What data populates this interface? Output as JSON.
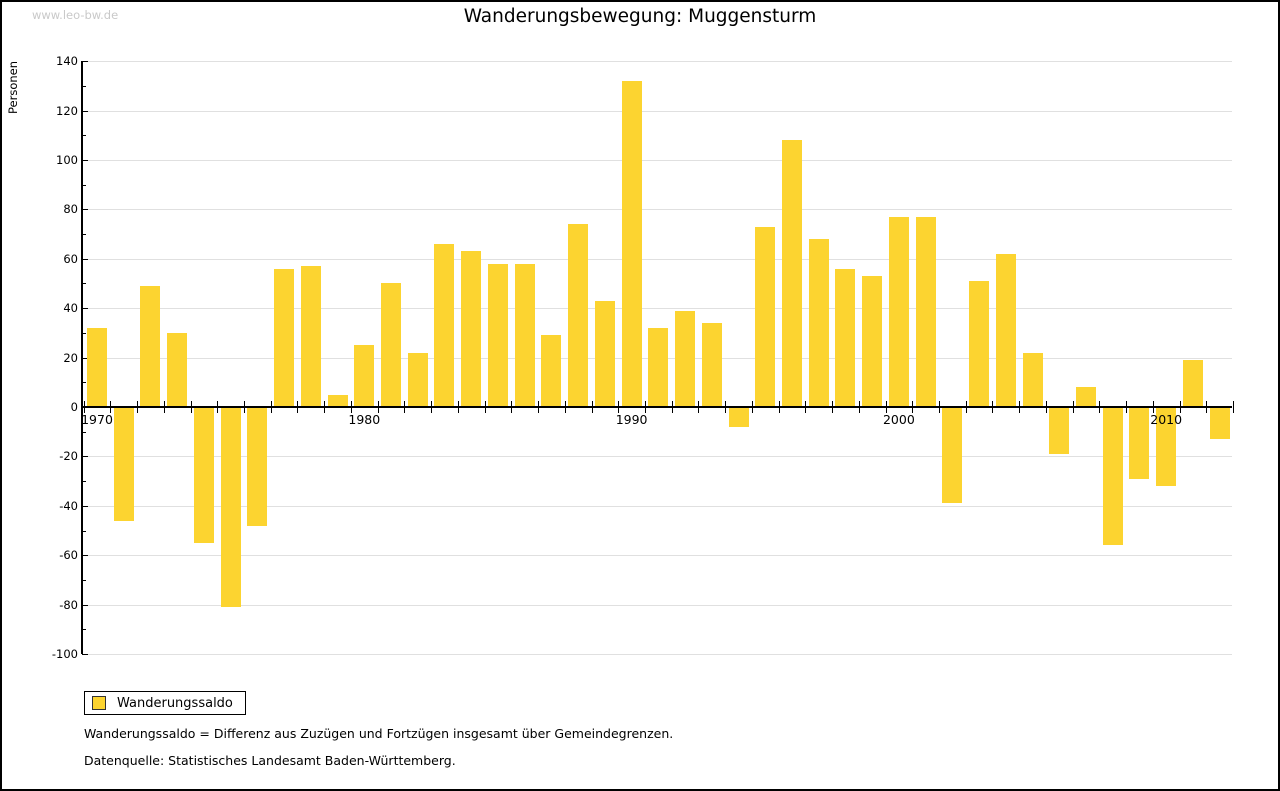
{
  "watermark": "www.leo-bw.de",
  "title": "Wanderungsbewegung: Muggensturm",
  "legend": {
    "label": "Wanderungssaldo",
    "swatch_color": "#fcd430"
  },
  "footnotes": {
    "definition": "Wanderungssaldo = Differenz aus Zuzügen und Fortzügen insgesamt über Gemeindegrenzen.",
    "source": "Datenquelle: Statistisches Landesamt Baden-Württemberg."
  },
  "chart_data": {
    "type": "bar",
    "title": "Wanderungsbewegung: Muggensturm",
    "ylabel": "Personen",
    "xlabel": "",
    "legend_entry": "Wanderungssaldo",
    "legend_position": "bottom-left",
    "grid": true,
    "ylim": [
      -100,
      140
    ],
    "ytick_step": 20,
    "xticks_labeled": [
      1970,
      1980,
      1990,
      2000,
      2010
    ],
    "bar_color": "#fcd430",
    "years": [
      1970,
      1971,
      1972,
      1973,
      1974,
      1975,
      1976,
      1977,
      1978,
      1979,
      1980,
      1981,
      1982,
      1983,
      1984,
      1985,
      1986,
      1987,
      1988,
      1989,
      1990,
      1991,
      1992,
      1993,
      1994,
      1995,
      1996,
      1997,
      1998,
      1999,
      2000,
      2001,
      2002,
      2003,
      2004,
      2005,
      2006,
      2007,
      2008,
      2009,
      2010,
      2011,
      2012
    ],
    "values": [
      32,
      -46,
      49,
      30,
      -55,
      -81,
      -48,
      56,
      57,
      5,
      25,
      50,
      22,
      66,
      63,
      58,
      58,
      29,
      74,
      43,
      132,
      32,
      39,
      34,
      -8,
      73,
      108,
      68,
      56,
      53,
      77,
      77,
      -39,
      51,
      62,
      22,
      -19,
      8,
      -56,
      -29,
      -32,
      19,
      -13
    ]
  }
}
